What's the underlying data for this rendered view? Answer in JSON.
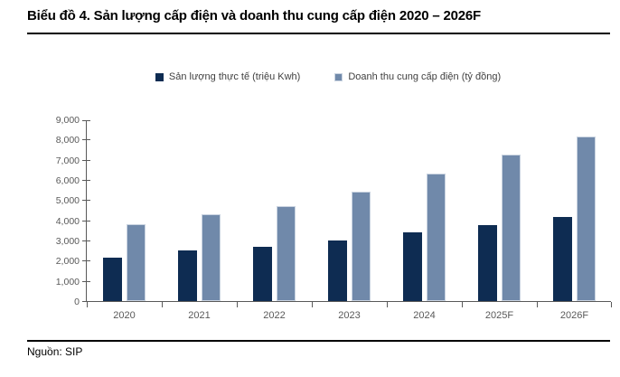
{
  "header": {
    "title": "Biểu đồ 4. Sản lượng cấp điện và doanh thu cung cấp điện 2020 – 2026F"
  },
  "footer": {
    "source": "Nguồn: SIP"
  },
  "colors": {
    "series_dark": "#0e2c52",
    "series_light": "#7089aa",
    "series_light_border": "#c9d3e0",
    "axis": "#595959",
    "tick_label": "#595959",
    "legend_text": "#404040",
    "rule": "#000000"
  },
  "chart_data": {
    "type": "bar",
    "title": "Biểu đồ 4. Sản lượng cấp điện và doanh thu cung cấp điện 2020 – 2026F",
    "categories": [
      "2020",
      "2021",
      "2022",
      "2023",
      "2024",
      "2025F",
      "2026F"
    ],
    "series": [
      {
        "name": "Sản lượng thực tế (triệu Kwh)",
        "color": "#0e2c52",
        "values": [
          2150,
          2500,
          2700,
          3000,
          3400,
          3750,
          4150
        ]
      },
      {
        "name": "Doanh thu cung cấp điện (tỷ đồng)",
        "color": "#7089aa",
        "border_color": "#c9d3e0",
        "values": [
          3800,
          4300,
          4700,
          5400,
          6300,
          7250,
          8150
        ]
      }
    ],
    "xlabel": "",
    "ylabel": "",
    "ylim": [
      0,
      9000
    ],
    "ytick_step": 1000,
    "ytick_labels": [
      "0",
      "1,000",
      "2,000",
      "3,000",
      "4,000",
      "5,000",
      "6,000",
      "7,000",
      "8,000",
      "9,000"
    ],
    "legend_position": "top",
    "grid": false
  }
}
